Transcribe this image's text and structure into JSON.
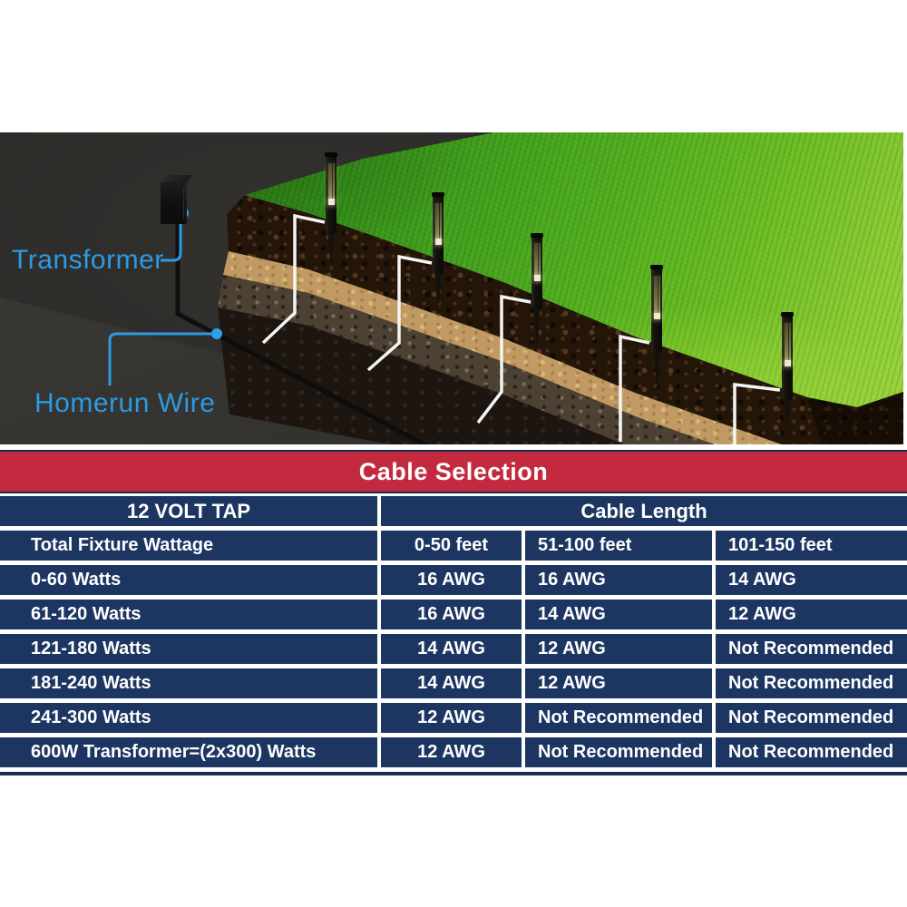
{
  "diagram": {
    "labels": {
      "transformer": "Transformer",
      "homerun_wire": "Homerun Wire"
    },
    "label_color": "#2d9ae3",
    "elements": {
      "transformer_box": "transformer",
      "homerun_wire_line": "homerun wire",
      "path_lights": 5,
      "connection_wires": "white wires from each light into soil"
    }
  },
  "table": {
    "title": "Cable Selection",
    "subheader": {
      "left": "12 VOLT TAP",
      "right": "Cable Length"
    },
    "columns_row": [
      "Total Fixture Wattage",
      "0-50 feet",
      "51-100 feet",
      "101-150 feet"
    ],
    "rows": [
      [
        "0-60 Watts",
        "16 AWG",
        "16 AWG",
        "14 AWG"
      ],
      [
        "61-120 Watts",
        "16 AWG",
        "14 AWG",
        "12 AWG"
      ],
      [
        "121-180 Watts",
        "14 AWG",
        "12 AWG",
        "Not Recommended"
      ],
      [
        "181-240 Watts",
        "14 AWG",
        "12 AWG",
        "Not Recommended"
      ],
      [
        "241-300 Watts",
        "12 AWG",
        "Not Recommended",
        "Not Recommended"
      ],
      [
        "600W Transformer=(2x300) Watts",
        "12 AWG",
        "Not Recommended",
        "Not Recommended"
      ]
    ],
    "colors": {
      "header_red": "#c32a40",
      "row_navy": "#1d3561",
      "border_navy": "#1a2d55",
      "separator_white": "#ffffff",
      "text_white": "#ffffff"
    }
  }
}
